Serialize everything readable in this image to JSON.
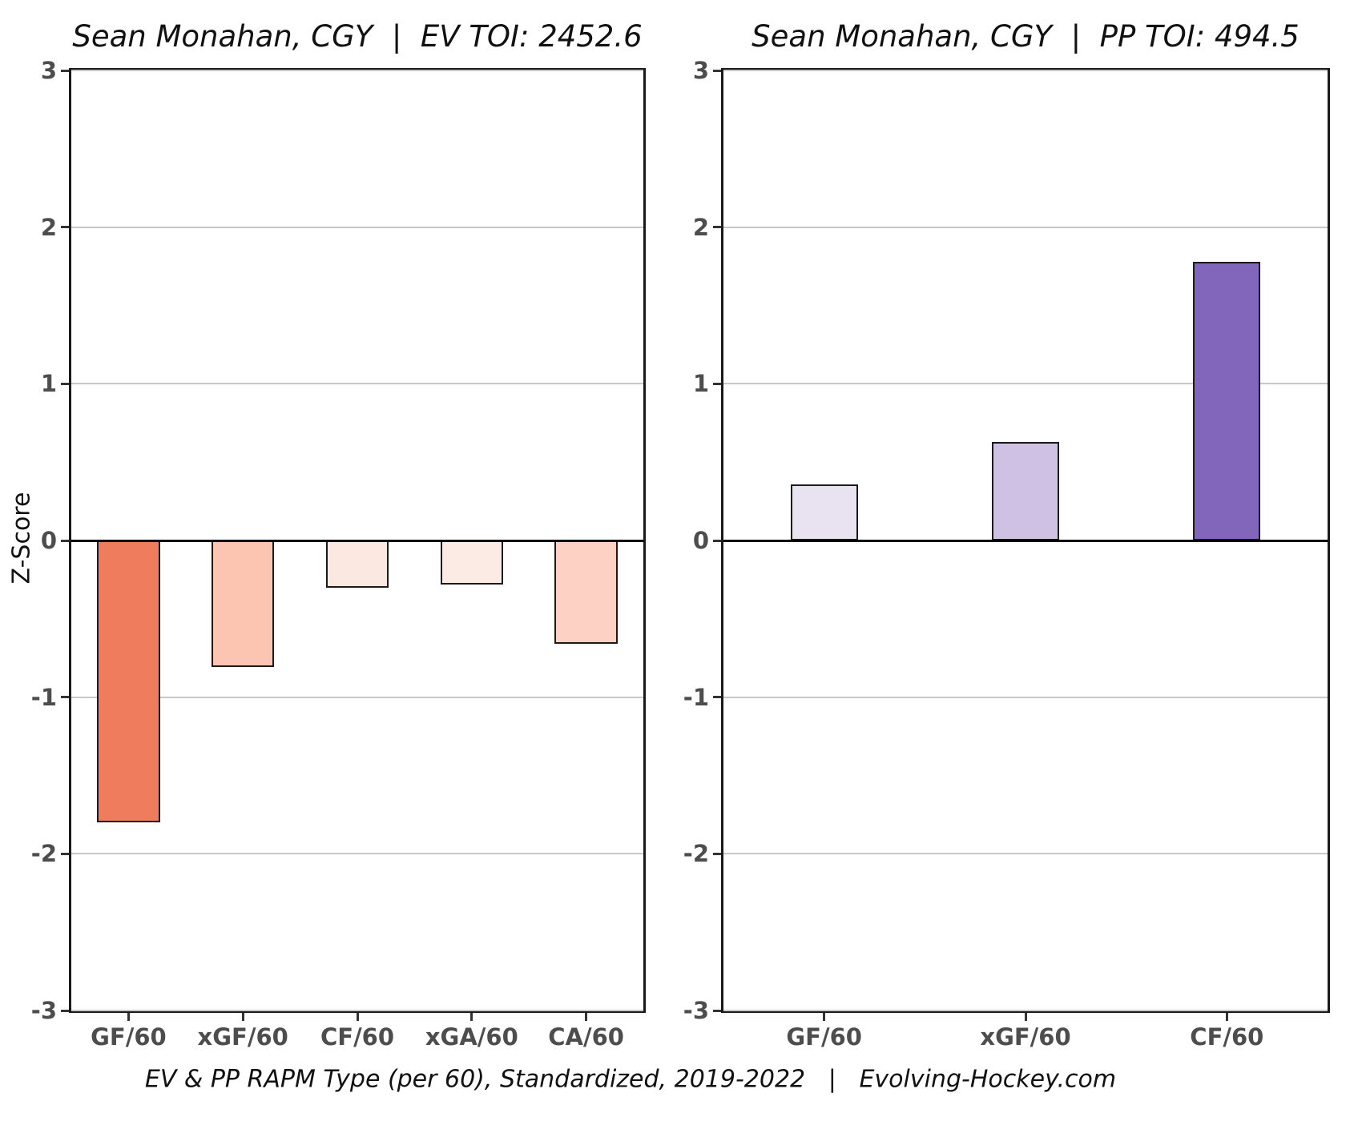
{
  "figure": {
    "background": "#ffffff",
    "border_color": "#1a1a1a",
    "grid_color": "#c8c8c8",
    "zero_line_color": "#000000",
    "axis_text_color": "#4d4d4d",
    "bar_stroke_color": "#1a1a1a"
  },
  "ylabel": "Z-Score",
  "footer": {
    "text": "EV & PP RAPM Type (per 60), Standardized, 2019-2022   |   Evolving-Hockey.com"
  },
  "chart_data": [
    {
      "type": "bar",
      "title": "Sean Monahan, CGY  |  EV TOI: 2452.6",
      "categories": [
        "GF/60",
        "xGF/60",
        "CF/60",
        "xGA/60",
        "CA/60"
      ],
      "values": [
        -1.8,
        -0.81,
        -0.3,
        -0.28,
        -0.66
      ],
      "bar_colors": [
        "#ef7c5d",
        "#fcc5b2",
        "#fbe9e1",
        "#fceae4",
        "#fdd2c4"
      ],
      "xlabel": "",
      "ylabel": "Z-Score",
      "ylim": [
        -3,
        3
      ],
      "yticks": [
        3,
        2,
        1,
        0,
        -1,
        -2,
        -3
      ],
      "grid": true,
      "legend": "none"
    },
    {
      "type": "bar",
      "title": "Sean Monahan, CGY  |  PP TOI: 494.5",
      "categories": [
        "GF/60",
        "xGF/60",
        "CF/60"
      ],
      "values": [
        0.36,
        0.63,
        1.78
      ],
      "bar_colors": [
        "#e8e2f1",
        "#cfc1e4",
        "#8166bc"
      ],
      "xlabel": "",
      "ylabel": "Z-Score",
      "ylim": [
        -3,
        3
      ],
      "yticks": [
        3,
        2,
        1,
        0,
        -1,
        -2,
        -3
      ],
      "grid": true,
      "legend": "none"
    }
  ]
}
